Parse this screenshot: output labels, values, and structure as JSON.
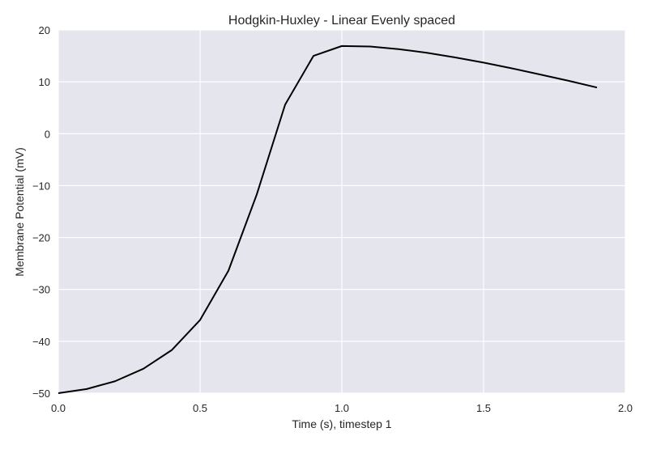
{
  "chart_data": {
    "type": "line",
    "title": "Hodgkin-Huxley - Linear Evenly spaced",
    "xlabel": "Time (s), timestep 1",
    "ylabel": "Membrane Potential (mV)",
    "xlim": [
      0.0,
      2.0
    ],
    "ylim": [
      -50,
      20
    ],
    "xticks": [
      0.0,
      0.5,
      1.0,
      1.5,
      2.0
    ],
    "xtick_labels": [
      "0.0",
      "0.5",
      "1.0",
      "1.5",
      "2.0"
    ],
    "yticks": [
      -50,
      -40,
      -30,
      -20,
      -10,
      0,
      10,
      20
    ],
    "ytick_labels": [
      "−50",
      "−40",
      "−30",
      "−20",
      "−10",
      "0",
      "10",
      "20"
    ],
    "grid": true,
    "background": "#E5E5EE",
    "grid_color": "#FFFFFF",
    "series": [
      {
        "color": "#000000",
        "x": [
          0.0,
          0.1,
          0.2,
          0.3,
          0.4,
          0.5,
          0.6,
          0.7,
          0.8,
          0.9,
          1.0,
          1.1,
          1.2,
          1.3,
          1.4,
          1.5,
          1.6,
          1.7,
          1.8,
          1.9
        ],
        "y": [
          -50.0,
          -49.2,
          -47.7,
          -45.3,
          -41.7,
          -35.9,
          -26.4,
          -11.7,
          5.6,
          15.0,
          16.9,
          16.8,
          16.3,
          15.6,
          14.7,
          13.7,
          12.6,
          11.4,
          10.2,
          8.9
        ]
      }
    ]
  }
}
